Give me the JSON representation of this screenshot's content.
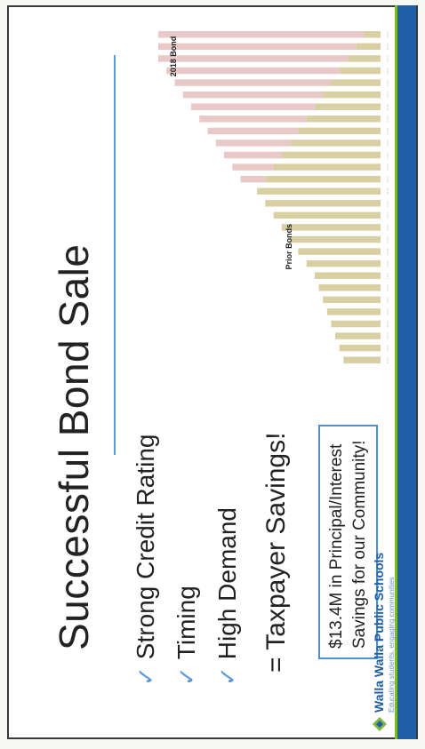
{
  "slide": {
    "title": "Successful Bond Sale",
    "bullets": [
      {
        "check": "✓",
        "text": "Strong Credit Rating"
      },
      {
        "check": "✓",
        "text": "Timing"
      },
      {
        "check": "✓",
        "text": "High Demand"
      }
    ],
    "savings_line": "= Taxpayer Savings!",
    "callout": "$13.4M in Principal/Interest Savings for our Community!",
    "logo_name": "Walla Walla Public Schools",
    "logo_tagline": "Educating students, engaging communities"
  },
  "chart_data": {
    "type": "bar",
    "annotations": [
      "Prior Bonds",
      "2018 Bond"
    ],
    "series": [
      {
        "values": [
          9,
          10,
          11,
          12,
          13,
          14,
          15,
          16,
          18,
          20,
          22,
          24,
          26,
          28,
          30,
          28,
          26,
          24,
          22,
          20,
          18,
          16,
          14,
          12,
          10,
          8,
          6,
          4
        ]
      },
      {
        "values": [
          0,
          0,
          0,
          0,
          0,
          0,
          0,
          0,
          0,
          0,
          0,
          0,
          0,
          0,
          0,
          6,
          10,
          14,
          18,
          22,
          26,
          30,
          34,
          38,
          42,
          46,
          48,
          50
        ]
      }
    ],
    "colors": {
      "prior": "#d8cfa3",
      "bond2018": "#e9c8c8"
    }
  }
}
